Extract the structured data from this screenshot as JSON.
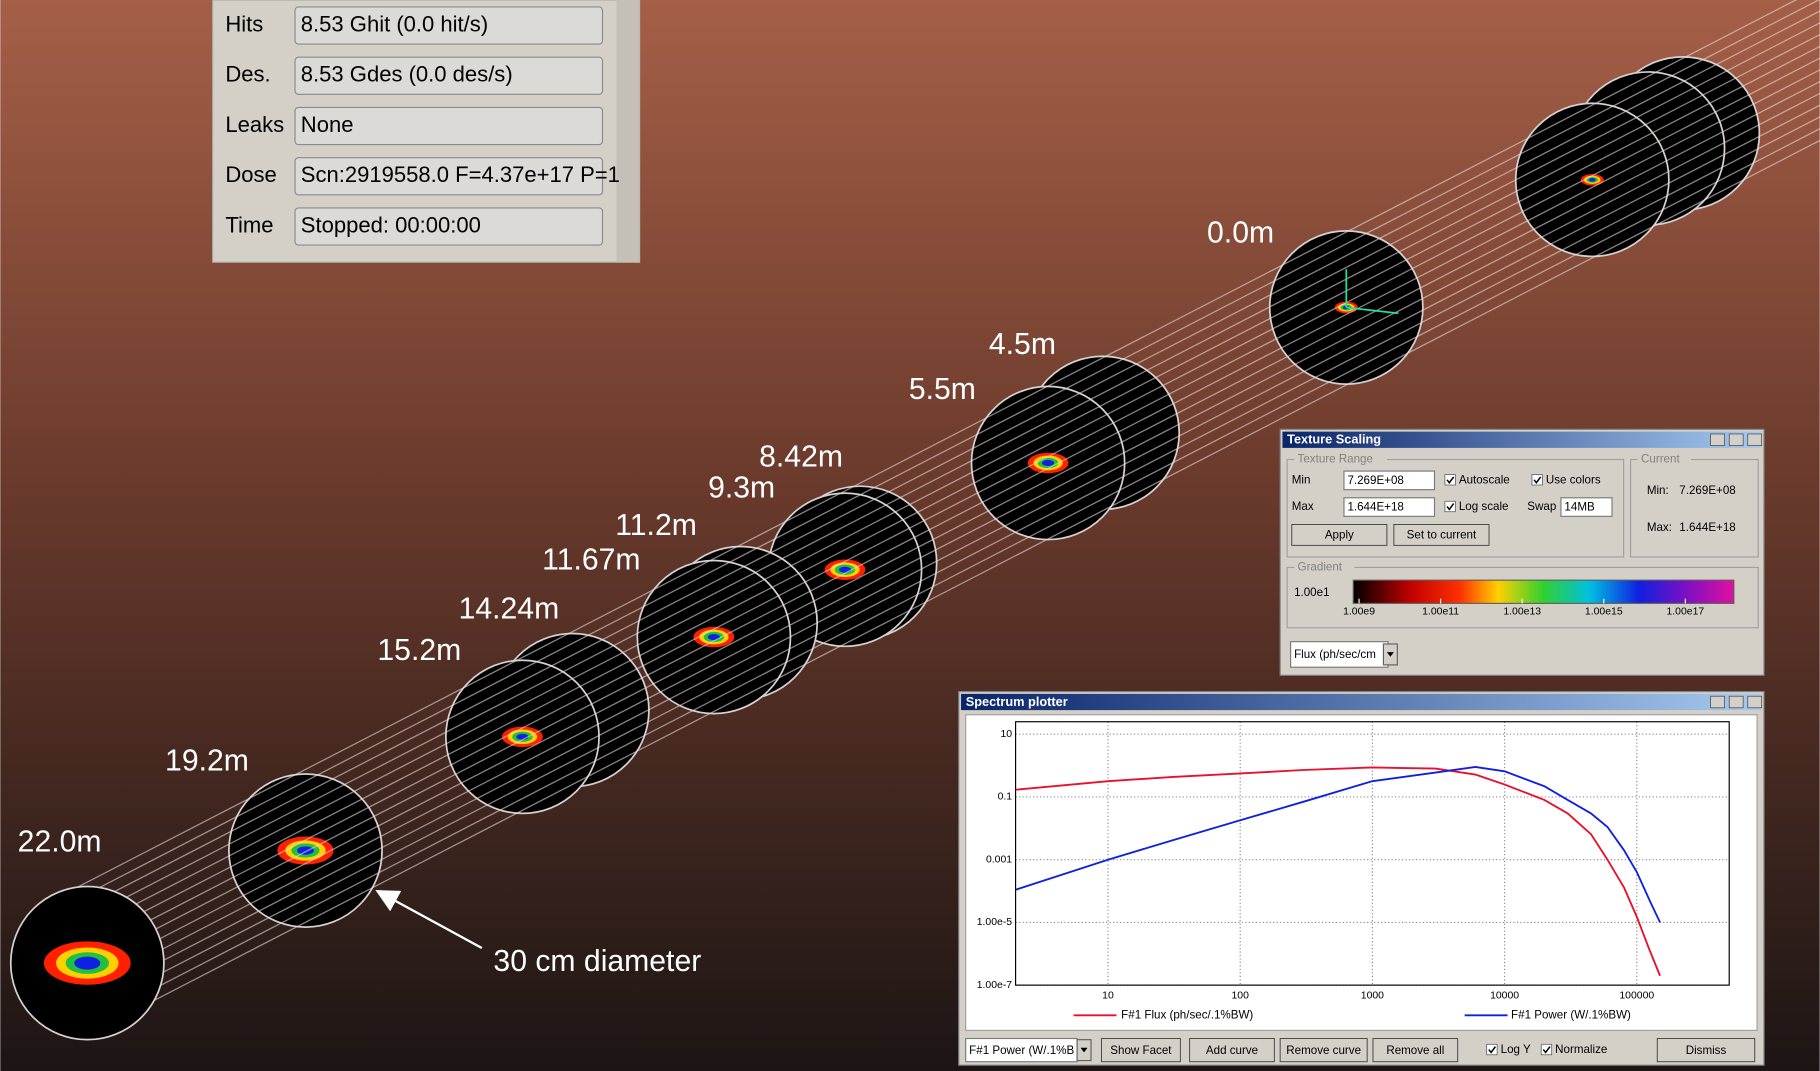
{
  "stats_panel": {
    "rows": [
      {
        "label": "Hits",
        "value": "8.53 Ghit (0.0 hit/s)"
      },
      {
        "label": "Des.",
        "value": "8.53 Gdes (0.0 des/s)"
      },
      {
        "label": "Leaks",
        "value": "None"
      },
      {
        "label": "Dose",
        "value": "Scn:2919558.0 F=4.37e+17 P=1"
      },
      {
        "label": "Time",
        "value": "Stopped: 00:00:00"
      }
    ]
  },
  "distance_labels": [
    "22.0m",
    "19.2m",
    "15.2m",
    "14.24m",
    "11.67m",
    "11.2m",
    "9.3m",
    "8.42m",
    "5.5m",
    "4.5m",
    "0.0m"
  ],
  "annotation": "30 cm diameter",
  "texture_scaling": {
    "title": "Texture Scaling",
    "range_group": "Texture Range",
    "min_label": "Min",
    "min_value": "7.269E+08",
    "max_label": "Max",
    "max_value": "1.644E+18",
    "autoscale": "Autoscale",
    "use_colors": "Use colors",
    "log_scale": "Log scale",
    "swap_label": "Swap",
    "swap_value": "14MB",
    "apply": "Apply",
    "set_to_current": "Set to current",
    "current_group": "Current",
    "current_min_label": "Min:",
    "current_min": "7.269E+08",
    "current_max_label": "Max:",
    "current_max": "1.644E+18",
    "gradient_group": "Gradient",
    "gradient_left": "1.00e1",
    "gradient_ticks": [
      "1.00e9",
      "1.00e11",
      "1.00e13",
      "1.00e15",
      "1.00e17"
    ],
    "quantity": "Flux (ph/sec/cm"
  },
  "spectrum_plotter": {
    "title": "Spectrum plotter",
    "chart": {
      "type": "line",
      "xscale": "log",
      "yscale": "log",
      "grid": true,
      "xlim": [
        2,
        500000
      ],
      "ylim": [
        1e-07,
        25
      ],
      "xticks": [
        10,
        100,
        1000,
        10000,
        100000
      ],
      "yticks": [
        10,
        0.1,
        0.001,
        {
          "value": 1e-05,
          "label": "1.00e-5"
        },
        {
          "value": 1e-07,
          "label": "1.00e-7"
        }
      ],
      "x": [
        2,
        10,
        30,
        100,
        300,
        1000,
        3000,
        6000,
        10000,
        20000,
        30000,
        45000,
        60000,
        80000,
        100000,
        125000,
        150000
      ],
      "series": [
        {
          "name": "F#1 Flux (ph/sec/.1%BW)",
          "color": "#e8102c",
          "values": [
            0.17,
            0.32,
            0.43,
            0.56,
            0.72,
            0.87,
            0.8,
            0.52,
            0.25,
            0.08,
            0.03,
            0.0065,
            0.001,
            0.00013,
            1.5e-05,
            1.3e-06,
            2e-07
          ]
        },
        {
          "name": "F#1 Power (W/.1%BW)",
          "color": "#1020e0",
          "values": [
            0.00011,
            0.001,
            0.004,
            0.018,
            0.07,
            0.32,
            0.6,
            0.9,
            0.66,
            0.22,
            0.08,
            0.03,
            0.011,
            0.002,
            0.0004,
            5e-05,
            1e-05
          ]
        }
      ]
    },
    "quantity": "F#1 Power (W/.1%B",
    "buttons": [
      "Show Facet",
      "Add curve",
      "Remove curve",
      "Remove all",
      "Dismiss"
    ],
    "log_y": "Log Y",
    "normalize": "Normalize"
  }
}
